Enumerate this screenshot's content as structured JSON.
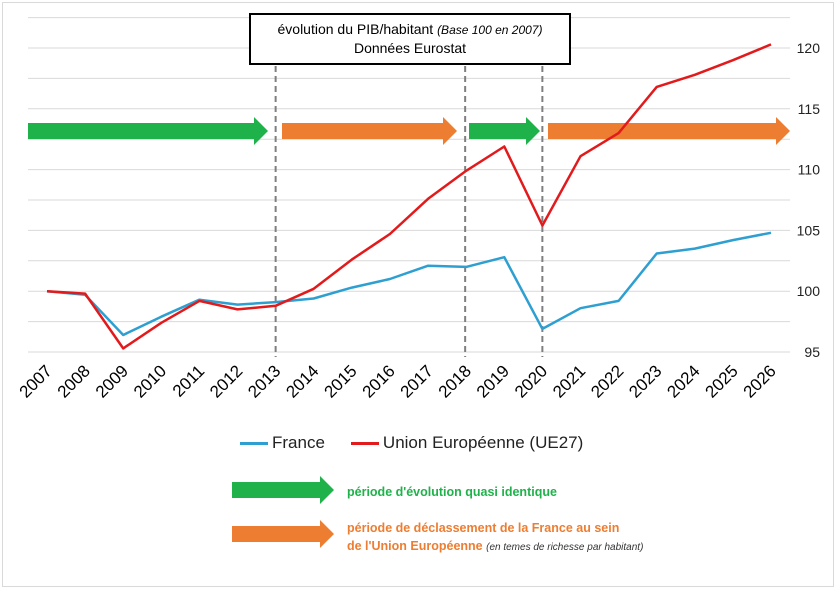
{
  "title": {
    "main": "évolution du PIB/habitant",
    "note": "(Base 100 en 2007)",
    "source": "Données Eurostat"
  },
  "colors": {
    "france": "#2e9fd1",
    "ue": "#e31a1c",
    "green": "#1fb24a",
    "orange": "#ed7d31",
    "grid": "#d9d9d9",
    "dash": "#7f7f7f"
  },
  "chart_data": {
    "type": "line",
    "x": [
      "2007",
      "2008",
      "2009",
      "2010",
      "2011",
      "2012",
      "2013",
      "2014",
      "2015",
      "2016",
      "2017",
      "2018",
      "2019",
      "2020",
      "2021",
      "2022",
      "2023",
      "2024",
      "2025",
      "2026"
    ],
    "series": [
      {
        "name": "France",
        "values": [
          100,
          99.7,
          96.4,
          97.9,
          99.3,
          98.9,
          99.1,
          99.4,
          100.3,
          101.0,
          102.1,
          102.0,
          102.8,
          96.9,
          98.6,
          99.2,
          103.1,
          103.5,
          104.2,
          104.8
        ]
      },
      {
        "name": "Union Européenne (UE27)",
        "values": [
          100,
          99.8,
          95.3,
          97.4,
          99.2,
          98.5,
          98.8,
          100.2,
          102.6,
          104.7,
          107.6,
          109.9,
          111.9,
          105.4,
          111.1,
          113.0,
          116.8,
          117.8,
          119.0,
          120.3
        ]
      }
    ],
    "ylim": [
      95,
      120
    ],
    "yticks": [
      95,
      100,
      105,
      110,
      115,
      120
    ],
    "y_axis_side": "right",
    "grid": true,
    "period_markers": [
      "2013",
      "2018",
      "2020"
    ],
    "periods": [
      {
        "from": "2007",
        "to": "2013",
        "kind": "green"
      },
      {
        "from": "2013",
        "to": "2018",
        "kind": "orange"
      },
      {
        "from": "2018",
        "to": "2020",
        "kind": "green"
      },
      {
        "from": "2020",
        "to": "2026",
        "kind": "orange"
      }
    ]
  },
  "legend": {
    "france": "France",
    "ue": "Union Européenne (UE27)",
    "green_label": "période d'évolution quasi identique",
    "orange_label_line1": "période de déclassement de la France au sein",
    "orange_label_line2": "de l'Union Européenne",
    "orange_note": "(en temes de richesse par habitant)"
  }
}
